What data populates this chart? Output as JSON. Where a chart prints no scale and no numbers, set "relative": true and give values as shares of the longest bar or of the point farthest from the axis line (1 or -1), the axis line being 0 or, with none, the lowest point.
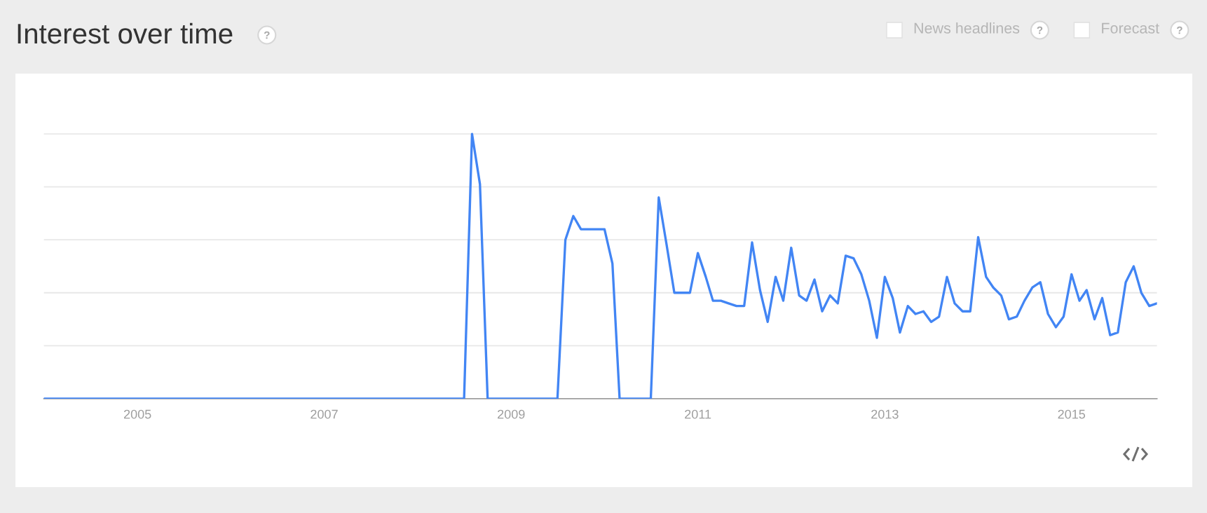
{
  "chart_data": {
    "type": "line",
    "title": "Interest over time",
    "relative": true,
    "grid": "y",
    "annotations": [
      "News headlines",
      "Forecast"
    ],
    "x": [
      "2004-01",
      "2004-02",
      "2004-03",
      "2004-04",
      "2004-05",
      "2004-06",
      "2004-07",
      "2004-08",
      "2004-09",
      "2004-10",
      "2004-11",
      "2004-12",
      "2005-01",
      "2005-02",
      "2005-03",
      "2005-04",
      "2005-05",
      "2005-06",
      "2005-07",
      "2005-08",
      "2005-09",
      "2005-10",
      "2005-11",
      "2005-12",
      "2006-01",
      "2006-02",
      "2006-03",
      "2006-04",
      "2006-05",
      "2006-06",
      "2006-07",
      "2006-08",
      "2006-09",
      "2006-10",
      "2006-11",
      "2006-12",
      "2007-01",
      "2007-02",
      "2007-03",
      "2007-04",
      "2007-05",
      "2007-06",
      "2007-07",
      "2007-08",
      "2007-09",
      "2007-10",
      "2007-11",
      "2007-12",
      "2008-01",
      "2008-02",
      "2008-03",
      "2008-04",
      "2008-05",
      "2008-06",
      "2008-07",
      "2008-08",
      "2008-09",
      "2008-10",
      "2008-11",
      "2008-12",
      "2009-01",
      "2009-02",
      "2009-03",
      "2009-04",
      "2009-05",
      "2009-06",
      "2009-07",
      "2009-08",
      "2009-09",
      "2009-10",
      "2009-11",
      "2009-12",
      "2010-01",
      "2010-02",
      "2010-03",
      "2010-04",
      "2010-05",
      "2010-06",
      "2010-07",
      "2010-08",
      "2010-09",
      "2010-10",
      "2010-11",
      "2010-12",
      "2011-01",
      "2011-02",
      "2011-03",
      "2011-04",
      "2011-05",
      "2011-06",
      "2011-07",
      "2011-08",
      "2011-09",
      "2011-10",
      "2011-11",
      "2011-12",
      "2012-01",
      "2012-02",
      "2012-03",
      "2012-04",
      "2012-05",
      "2012-06",
      "2012-07",
      "2012-08",
      "2012-09",
      "2012-10",
      "2012-11",
      "2012-12",
      "2013-01",
      "2013-02",
      "2013-03",
      "2013-04",
      "2013-05",
      "2013-06",
      "2013-07",
      "2013-08",
      "2013-09",
      "2013-10",
      "2013-11",
      "2013-12",
      "2014-01",
      "2014-02",
      "2014-03",
      "2014-04",
      "2014-05",
      "2014-06",
      "2014-07",
      "2014-08",
      "2014-09",
      "2014-10",
      "2014-11",
      "2014-12",
      "2015-01",
      "2015-02",
      "2015-03",
      "2015-04",
      "2015-05",
      "2015-06",
      "2015-07",
      "2015-08",
      "2015-09",
      "2015-10",
      "2015-11",
      "2015-12"
    ],
    "xlim": [
      "2004-01",
      "2015-12"
    ],
    "xticks": [
      "2005",
      "2007",
      "2009",
      "2011",
      "2013",
      "2015"
    ],
    "series": [
      {
        "color": "#4285f4",
        "values": [
          0,
          0,
          0,
          0,
          0,
          0,
          0,
          0,
          0,
          0,
          0,
          0,
          0,
          0,
          0,
          0,
          0,
          0,
          0,
          0,
          0,
          0,
          0,
          0,
          0,
          0,
          0,
          0,
          0,
          0,
          0,
          0,
          0,
          0,
          0,
          0,
          0,
          0,
          0,
          0,
          0,
          0,
          0,
          0,
          0,
          0,
          0,
          0,
          0,
          0,
          0,
          0,
          0,
          0,
          0,
          1,
          0.81,
          0,
          0,
          0,
          0,
          0,
          0,
          0,
          0,
          0,
          0,
          0.6,
          0.69,
          0.64,
          0.64,
          0.64,
          0.64,
          0.51,
          0,
          0,
          0,
          0,
          0,
          0.76,
          0.58,
          0.4,
          0.4,
          0.4,
          0.55,
          0.46,
          0.37,
          0.37,
          0.36,
          0.35,
          0.35,
          0.59,
          0.41,
          0.29,
          0.46,
          0.37,
          0.57,
          0.39,
          0.37,
          0.45,
          0.33,
          0.39,
          0.36,
          0.54,
          0.53,
          0.47,
          0.37,
          0.23,
          0.46,
          0.38,
          0.25,
          0.35,
          0.32,
          0.33,
          0.29,
          0.31,
          0.46,
          0.36,
          0.33,
          0.33,
          0.61,
          0.46,
          0.42,
          0.39,
          0.3,
          0.31,
          0.37,
          0.42,
          0.44,
          0.32,
          0.27,
          0.31,
          0.47,
          0.37,
          0.41,
          0.3,
          0.38,
          0.24,
          0.25,
          0.44,
          0.5,
          0.4,
          0.35,
          0.36
        ]
      }
    ]
  }
}
